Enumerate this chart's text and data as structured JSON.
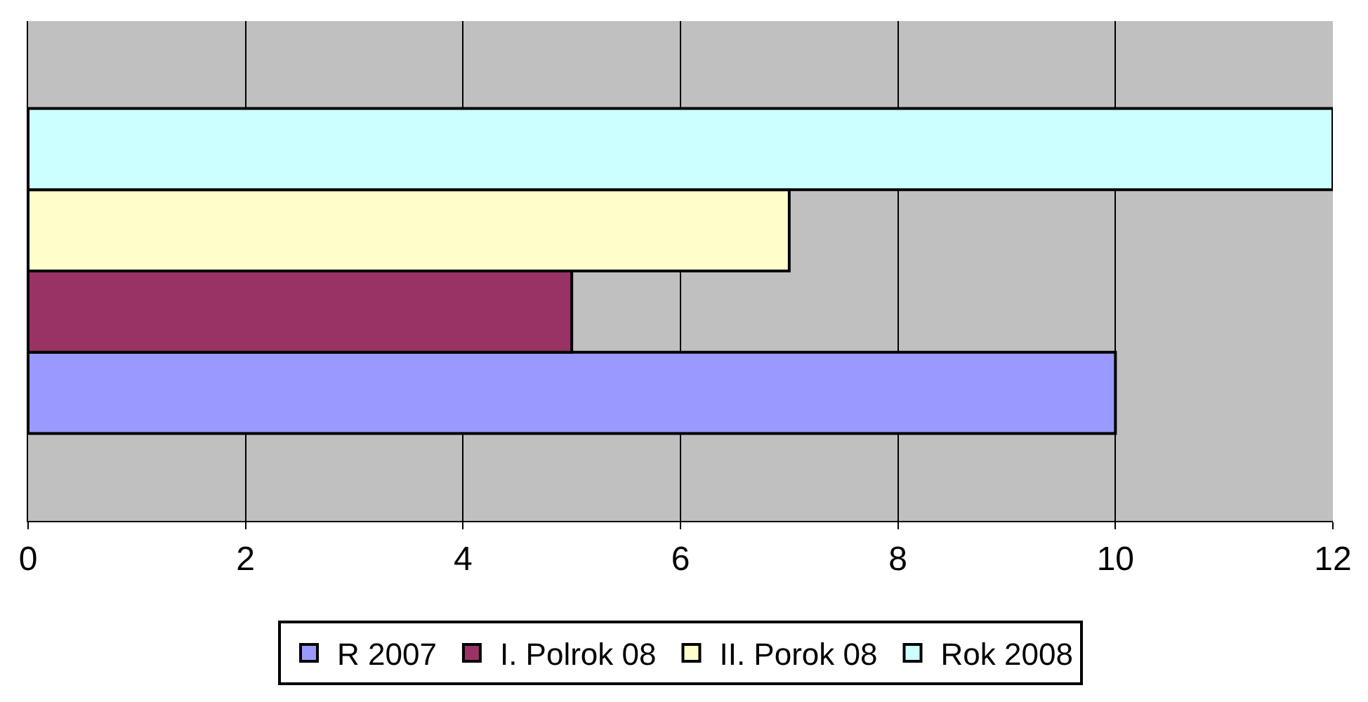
{
  "chart_data": {
    "type": "bar",
    "orientation": "horizontal",
    "categories": [
      null
    ],
    "series": [
      {
        "name": "R 2007",
        "color": "#9999ff",
        "values": [
          10
        ]
      },
      {
        "name": "I. Polrok 08",
        "color": "#993366",
        "values": [
          5
        ]
      },
      {
        "name": "II. Porok 08",
        "color": "#ffffcc",
        "values": [
          7
        ]
      },
      {
        "name": "Rok 2008",
        "color": "#ccffff",
        "values": [
          12
        ]
      }
    ],
    "xlim": [
      0,
      12
    ],
    "xticks": [
      0,
      2,
      4,
      6,
      8,
      10,
      12
    ],
    "grid": "x",
    "legend": "bottom",
    "tick_labels": "x"
  }
}
